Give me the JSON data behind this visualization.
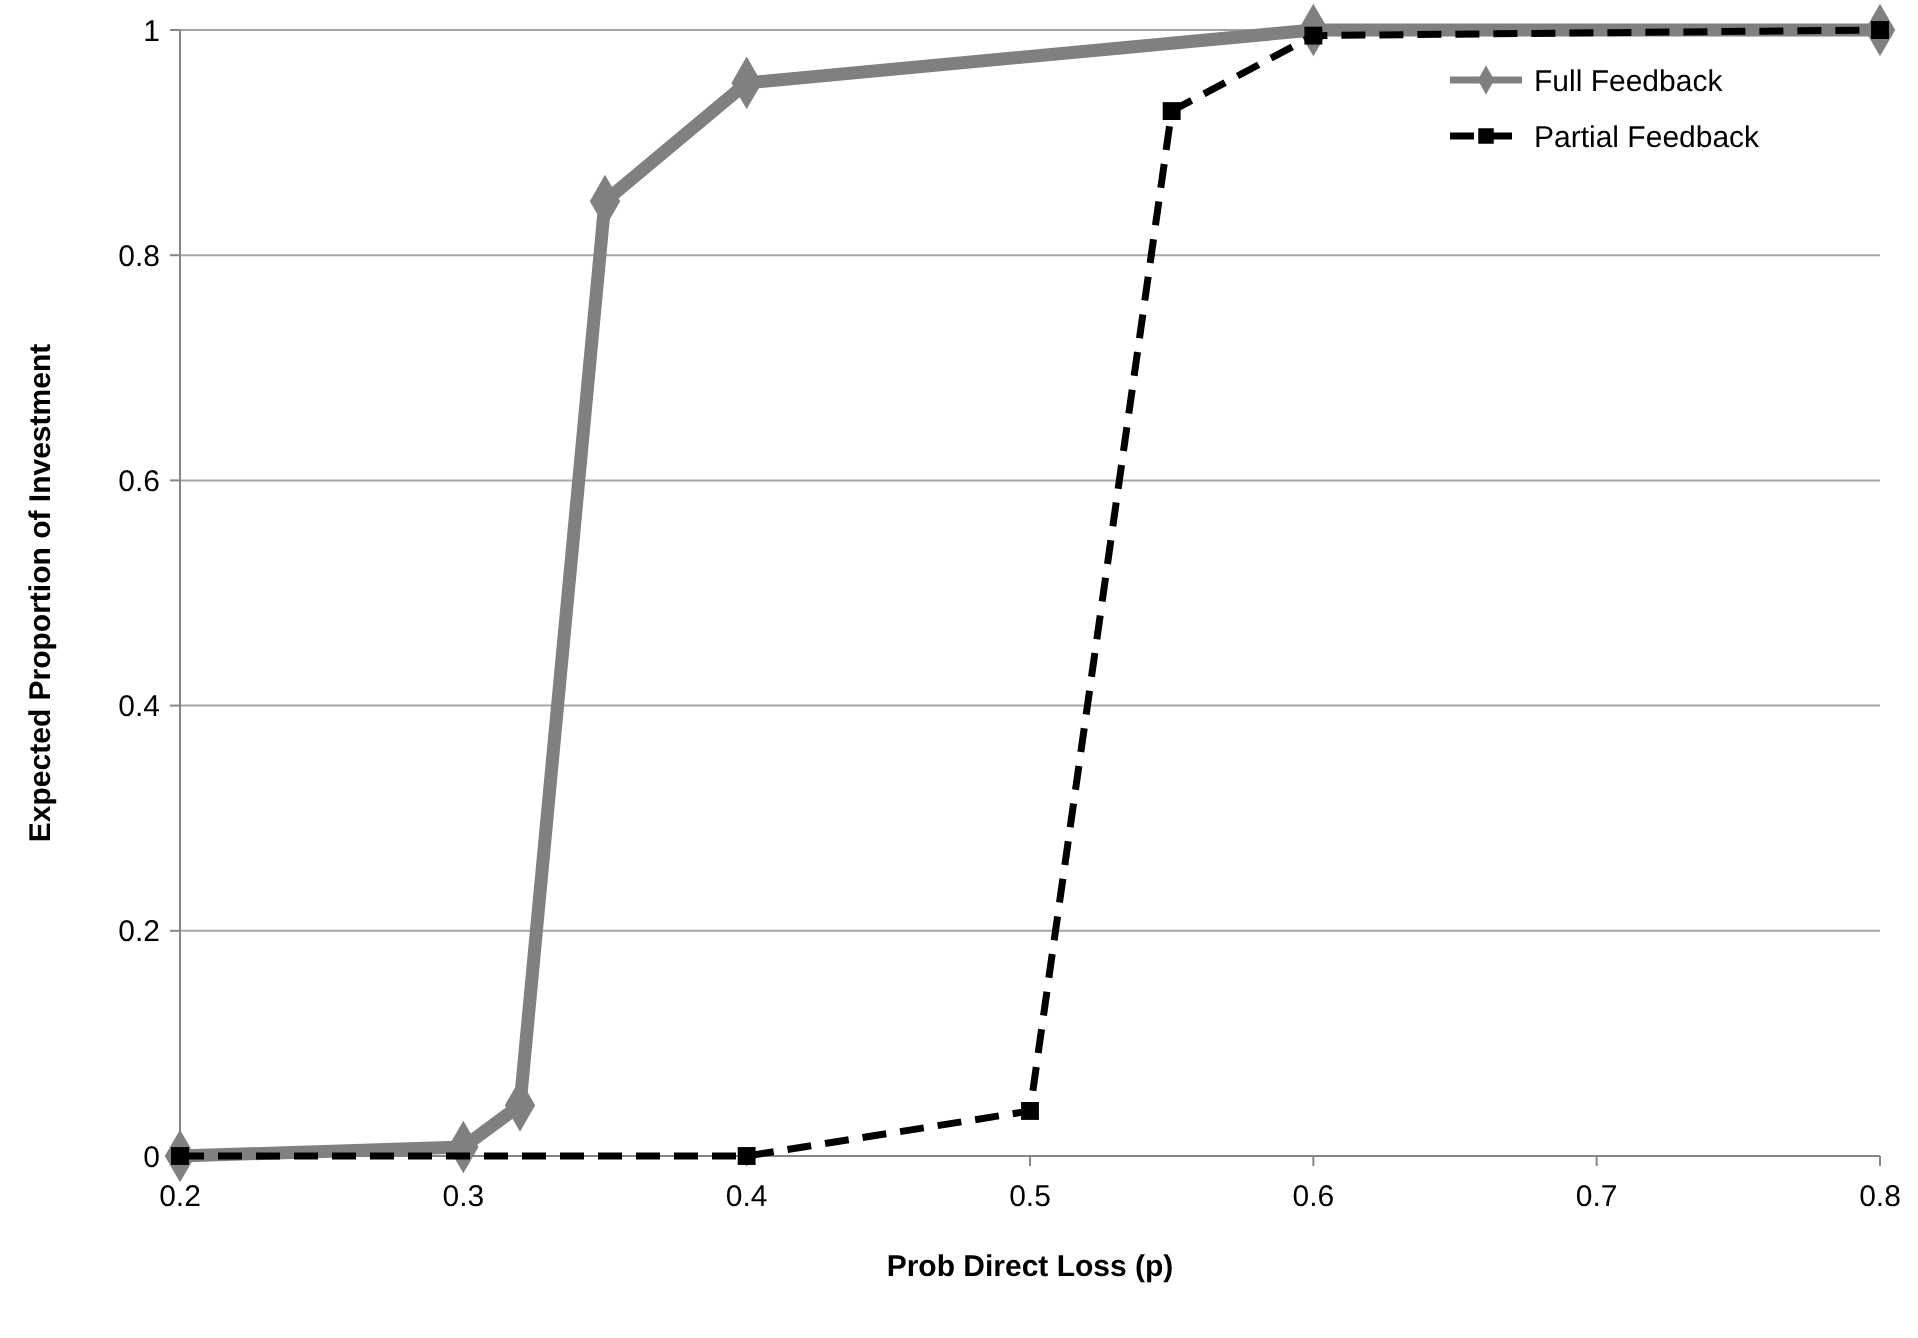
{
  "chart_data": {
    "type": "line",
    "xlabel": "Prob Direct Loss (p)",
    "ylabel": "Expected Proportion of Investment",
    "xlim": [
      0.2,
      0.8
    ],
    "xticks": [
      0.2,
      0.3,
      0.4,
      0.5,
      0.6,
      0.7,
      0.8
    ],
    "ylim": [
      0,
      1
    ],
    "yticks": [
      0,
      0.2,
      0.4,
      0.6,
      0.8,
      1
    ],
    "grid": "y",
    "legend": "top right",
    "series": [
      {
        "name": "Full Feedback",
        "color": "#808080",
        "marker": "diamond",
        "line_style": "solid",
        "x": [
          0.2,
          0.3,
          0.32,
          0.35,
          0.4,
          0.6,
          0.8
        ],
        "values": [
          0,
          0.008,
          0.045,
          0.848,
          0.953,
          1,
          1
        ]
      },
      {
        "name": "Partial Feedback",
        "color": "#000000",
        "marker": "square",
        "line_style": "dashed",
        "x": [
          0.2,
          0.4,
          0.5,
          0.55,
          0.6,
          0.8
        ],
        "values": [
          0,
          0,
          0.04,
          0.928,
          0.995,
          1
        ]
      }
    ]
  }
}
